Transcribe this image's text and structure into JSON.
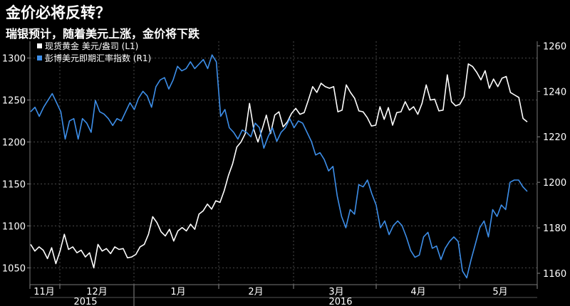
{
  "title": "金价必将反转？",
  "subtitle": "瑞银预计，随着美元上涨，金价将下跌",
  "chart_data": {
    "type": "line",
    "legend": "top-left",
    "grid": true,
    "x_axis": {
      "months": [
        "11月",
        "12月",
        "1月",
        "2月",
        "3月",
        "4月",
        "5月"
      ],
      "years": [
        "2015",
        "2016"
      ]
    },
    "y_left": {
      "ticks": [
        1050,
        1100,
        1150,
        1200,
        1250,
        1300
      ],
      "range": [
        1030,
        1320
      ]
    },
    "y_right": {
      "ticks": [
        1160,
        1180,
        1200,
        1220,
        1240,
        1260
      ],
      "range": [
        1155,
        1262
      ]
    },
    "series": [
      {
        "name": "现货黄金 美元/盎司 (L1)",
        "axis": "left",
        "color": "#ffffff",
        "values": [
          1078,
          1070,
          1075,
          1071,
          1061,
          1074,
          1055,
          1070,
          1090,
          1072,
          1075,
          1068,
          1071,
          1063,
          1068,
          1050,
          1078,
          1070,
          1073,
          1067,
          1075,
          1072,
          1073,
          1062,
          1063,
          1066,
          1075,
          1078,
          1090,
          1111,
          1104,
          1093,
          1088,
          1096,
          1082,
          1094,
          1098,
          1094,
          1102,
          1096,
          1114,
          1118,
          1126,
          1120,
          1130,
          1128,
          1142,
          1160,
          1174,
          1194,
          1200,
          1210,
          1246,
          1215,
          1200,
          1215,
          1232,
          1210,
          1232,
          1236,
          1218,
          1224,
          1234,
          1240,
          1233,
          1235,
          1250,
          1266,
          1259,
          1270,
          1266,
          1264,
          1266,
          1236,
          1238,
          1268,
          1259,
          1252,
          1237,
          1236,
          1229,
          1219,
          1220,
          1242,
          1227,
          1241,
          1220,
          1235,
          1236,
          1248,
          1238,
          1242,
          1233,
          1246,
          1268,
          1250,
          1251,
          1237,
          1238,
          1280,
          1248,
          1243,
          1245,
          1254,
          1293,
          1290,
          1283,
          1274,
          1285,
          1264,
          1275,
          1266,
          1276,
          1278,
          1259,
          1256,
          1253,
          1228,
          1224
        ]
      },
      {
        "name": "彭博美元即期汇率指数 (R1)",
        "axis": "right",
        "color": "#3d8ee8",
        "values": [
          1231,
          1233,
          1229,
          1233,
          1236,
          1239,
          1235,
          1231,
          1219,
          1227,
          1228,
          1219,
          1228,
          1226,
          1222,
          1236,
          1231,
          1230,
          1228,
          1225,
          1228,
          1227,
          1231,
          1235,
          1232,
          1237,
          1240,
          1238,
          1233,
          1242,
          1245,
          1246,
          1241,
          1245,
          1251,
          1249,
          1250,
          1253,
          1250,
          1252,
          1254,
          1250,
          1256,
          1253,
          1229,
          1232,
          1224,
          1222,
          1219,
          1223,
          1222,
          1220,
          1226,
          1224,
          1215,
          1220,
          1224,
          1218,
          1222,
          1224,
          1228,
          1224,
          1227,
          1226,
          1222,
          1218,
          1212,
          1213,
          1210,
          1205,
          1207,
          1194,
          1185,
          1180,
          1188,
          1186,
          1199,
          1198,
          1201,
          1195,
          1190,
          1180,
          1183,
          1177,
          1181,
          1183,
          1181,
          1176,
          1170,
          1167,
          1168,
          1176,
          1178,
          1171,
          1172,
          1166,
          1171,
          1174,
          1176,
          1174,
          1161,
          1158,
          1166,
          1173,
          1180,
          1183,
          1176,
          1188,
          1185,
          1190,
          1188,
          1200,
          1201,
          1201,
          1198,
          1196
        ]
      }
    ]
  }
}
